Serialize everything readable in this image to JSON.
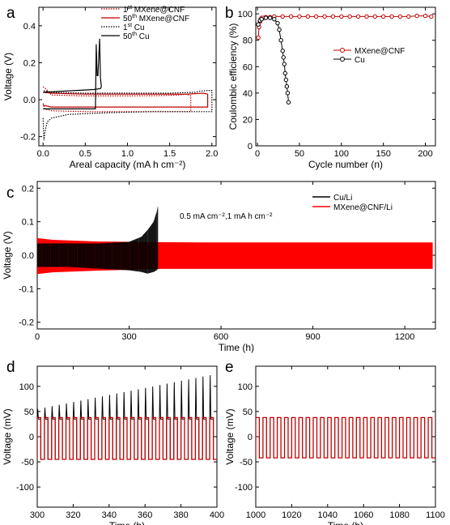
{
  "panels": [
    "a",
    "b",
    "c",
    "d",
    "e"
  ],
  "chart_data": [
    {
      "panel": "a",
      "type": "line",
      "xlabel": "Areal capacity (mA h cm⁻²)",
      "ylabel": "Voltage (V)",
      "xlim": [
        -0.05,
        2.05
      ],
      "ylim": [
        -0.25,
        0.5
      ],
      "xticks": [
        0.0,
        0.5,
        1.0,
        1.5,
        2.0
      ],
      "xtick_labels": [
        "0.0",
        "0.5",
        "1.0",
        "1.5",
        "2.0"
      ],
      "yticks": [
        -0.2,
        0.0,
        0.2,
        0.4
      ],
      "ytick_labels": [
        "-0.2",
        "0.0",
        "0.2",
        "0.4"
      ],
      "legend_position": "top-right",
      "legend": [
        {
          "sup_num": "1",
          "sup": "st",
          "text": "MXene@CNF",
          "color": "#c00000",
          "dash": "dotted"
        },
        {
          "sup_num": "50",
          "sup": "th",
          "text": "MXene@CNF",
          "color": "#c00000",
          "dash": "solid"
        },
        {
          "sup_num": "1",
          "sup": "st",
          "text": "Cu",
          "color": "#000000",
          "dash": "dotted"
        },
        {
          "sup_num": "50",
          "sup": "th",
          "text": "Cu",
          "color": "#000000",
          "dash": "solid"
        }
      ],
      "series": [
        {
          "name": "1st MXene@CNF",
          "color": "#c00000",
          "dash": "dotted",
          "x": [
            0.0,
            0.02,
            0.1,
            0.5,
            1.0,
            1.5,
            1.75,
            1.75,
            1.7,
            1.6,
            1.4,
            1.0,
            0.5,
            0.1,
            0.03,
            0.0
          ],
          "y": [
            -0.02,
            -0.05,
            -0.06,
            -0.065,
            -0.065,
            -0.065,
            -0.065,
            0.02,
            0.03,
            0.025,
            0.022,
            0.02,
            0.02,
            0.025,
            0.06,
            0.07
          ]
        },
        {
          "name": "50th MXene@CNF",
          "color": "#c00000",
          "dash": "solid",
          "x": [
            0.0,
            0.1,
            0.5,
            1.0,
            1.5,
            1.95,
            1.95,
            1.9,
            1.7,
            1.5,
            1.0,
            0.5,
            0.1,
            0.0
          ],
          "y": [
            -0.03,
            -0.04,
            -0.04,
            -0.04,
            -0.04,
            -0.04,
            0.03,
            0.035,
            0.03,
            0.03,
            0.03,
            0.03,
            0.035,
            0.04
          ]
        },
        {
          "name": "1st Cu",
          "color": "#000000",
          "dash": "dotted",
          "x": [
            0.0,
            0.01,
            0.02,
            0.05,
            0.1,
            0.3,
            0.8,
            1.3,
            1.8,
            2.0,
            2.0,
            1.95,
            1.85,
            1.8,
            1.5,
            1.0,
            0.5,
            0.1,
            0.0
          ],
          "y": [
            -0.1,
            -0.22,
            -0.18,
            -0.12,
            -0.1,
            -0.08,
            -0.07,
            -0.065,
            -0.065,
            -0.065,
            0.05,
            0.05,
            0.045,
            0.04,
            0.035,
            0.035,
            0.035,
            0.04,
            0.05
          ]
        },
        {
          "name": "50th Cu",
          "color": "#000000",
          "dash": "solid",
          "x": [
            0.0,
            0.1,
            0.4,
            0.55,
            0.62,
            0.63,
            0.64,
            0.65,
            0.67,
            0.68,
            0.69,
            0.68,
            0.6,
            0.4,
            0.2,
            0.0
          ],
          "y": [
            -0.05,
            -0.05,
            -0.05,
            -0.05,
            -0.05,
            0.3,
            0.13,
            0.13,
            0.33,
            0.12,
            0.07,
            0.06,
            0.055,
            0.05,
            0.045,
            0.04
          ]
        }
      ]
    },
    {
      "panel": "b",
      "type": "scatter",
      "xlabel": "Cycle number (n)",
      "ylabel": "Coulombic efficiency (%)",
      "xlim": [
        -2,
        212
      ],
      "ylim": [
        0,
        105
      ],
      "xticks": [
        0,
        50,
        100,
        150,
        200
      ],
      "yticks": [
        0,
        20,
        40,
        60,
        80,
        100
      ],
      "legend_position": "center-right",
      "series": [
        {
          "name": "MXene@CNF",
          "color": "#c00000",
          "marker": "open-circle",
          "x": [
            1,
            2,
            3,
            4,
            5,
            7,
            10,
            15,
            20,
            30,
            40,
            50,
            60,
            70,
            80,
            90,
            100,
            110,
            120,
            130,
            140,
            150,
            160,
            170,
            180,
            190,
            200,
            207
          ],
          "y": [
            82,
            90,
            94,
            96,
            97,
            97,
            97.5,
            97.5,
            98,
            98,
            98,
            98,
            98,
            98,
            98,
            98,
            98,
            98,
            98,
            98,
            98,
            98,
            98,
            98,
            98,
            98.5,
            98.5,
            98
          ]
        },
        {
          "name": "Cu",
          "color": "#000000",
          "marker": "open-circle",
          "x": [
            1,
            3,
            5,
            10,
            15,
            20,
            24,
            26,
            28,
            30,
            31,
            32,
            33,
            34,
            35,
            36,
            37
          ],
          "y": [
            92,
            95,
            96,
            97,
            97,
            96,
            93,
            88,
            80,
            72,
            67,
            62,
            55,
            50,
            45,
            40,
            33
          ]
        }
      ]
    },
    {
      "panel": "c",
      "type": "line",
      "annotation": "0.5 mA cm⁻²,1 mA h cm⁻²",
      "xlabel": "Time (h)",
      "ylabel": "Voltage (V)",
      "xlim": [
        0,
        1300
      ],
      "ylim": [
        -0.22,
        0.22
      ],
      "xticks": [
        0,
        300,
        600,
        900,
        1200
      ],
      "yticks": [
        -0.2,
        -0.1,
        0.0,
        0.1,
        0.2
      ],
      "ytick_labels": [
        "-0.2",
        "-0.1",
        "0.0",
        "0.1",
        "0.2"
      ],
      "legend_position": "top-right",
      "series": [
        {
          "name": "Cu/Li",
          "color": "#000000",
          "x": [
            0,
            100,
            200,
            300,
            340,
            360,
            380,
            390,
            395
          ],
          "y_upper": [
            0.035,
            0.035,
            0.035,
            0.04,
            0.055,
            0.075,
            0.1,
            0.13,
            0.15
          ],
          "y_lower": [
            -0.035,
            -0.035,
            -0.04,
            -0.045,
            -0.05,
            -0.055,
            -0.05,
            -0.045,
            -0.04
          ]
        },
        {
          "name": "MXene@CNF/Li",
          "color": "#ff0000",
          "x": [
            0,
            50,
            200,
            400,
            600,
            800,
            1000,
            1200,
            1290
          ],
          "y_upper": [
            0.05,
            0.045,
            0.04,
            0.038,
            0.037,
            0.037,
            0.037,
            0.037,
            0.037
          ],
          "y_lower": [
            -0.055,
            -0.05,
            -0.045,
            -0.04,
            -0.04,
            -0.04,
            -0.04,
            -0.04,
            -0.04
          ]
        }
      ]
    },
    {
      "panel": "d",
      "type": "line",
      "xlabel": "Time (h)",
      "ylabel": "Voltage (mV)",
      "xlim": [
        300,
        400
      ],
      "ylim": [
        -140,
        140
      ],
      "xticks": [
        300,
        320,
        340,
        360,
        380,
        400
      ],
      "yticks": [
        -100,
        -50,
        0,
        50,
        100
      ],
      "series": [
        {
          "name": "Cu/Li",
          "color": "#000000",
          "period_h": 4,
          "spike_mV_start": 55,
          "spike_mV_end": 125,
          "plateau_mV": 35,
          "lower_mV": -45
        },
        {
          "name": "MXene@CNF/Li",
          "color": "#c00000",
          "period_h": 4,
          "upper_mV": 38,
          "lower_mV": -45
        }
      ]
    },
    {
      "panel": "e",
      "type": "line",
      "xlabel": "Time (h)",
      "ylabel": "Voltage (mV)",
      "xlim": [
        1000,
        1100
      ],
      "ylim": [
        -140,
        140
      ],
      "xticks": [
        1000,
        1020,
        1040,
        1060,
        1080,
        1100
      ],
      "yticks": [
        -100,
        -50,
        0,
        50,
        100
      ],
      "series": [
        {
          "name": "MXene@CNF/Li",
          "color": "#c00000",
          "period_h": 4,
          "upper_mV": 38,
          "lower_mV": -42
        }
      ]
    }
  ]
}
